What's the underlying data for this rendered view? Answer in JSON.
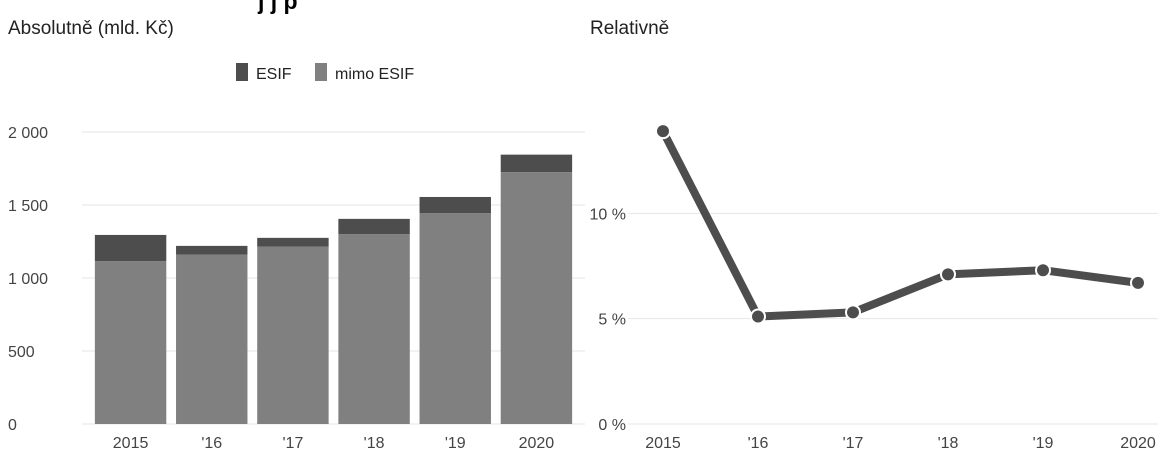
{
  "figure": {
    "title_fragment": "j j    p"
  },
  "colors": {
    "esif": "#4d4d4d",
    "mimo_esif": "#808080",
    "line": "#4d4d4d",
    "grid": "#e6e6e6"
  },
  "chart_data": [
    {
      "type": "bar",
      "stacked": true,
      "title": "Absolutně (mld. Kč)",
      "categories": [
        "2015",
        "'16",
        "'17",
        "'18",
        "'19",
        "2020"
      ],
      "series": [
        {
          "name": "mimo ESIF",
          "values": [
            1115,
            1160,
            1215,
            1300,
            1445,
            1725
          ]
        },
        {
          "name": "ESIF",
          "values": [
            180,
            60,
            60,
            105,
            110,
            120
          ]
        }
      ],
      "ylim": [
        0,
        2000
      ],
      "yticks": [
        "0",
        "500",
        "1 000",
        "1 500",
        "2 000"
      ],
      "legend": "top-center",
      "grid": true
    },
    {
      "type": "line",
      "title": "Relativně",
      "categories": [
        "2015",
        "'16",
        "'17",
        "'18",
        "'19",
        "2020"
      ],
      "values": [
        13.9,
        5.1,
        5.3,
        7.1,
        7.3,
        6.7
      ],
      "ylim": [
        0,
        15
      ],
      "yticks": [
        "0 %",
        "5 %",
        "10 %"
      ],
      "grid": true
    }
  ]
}
